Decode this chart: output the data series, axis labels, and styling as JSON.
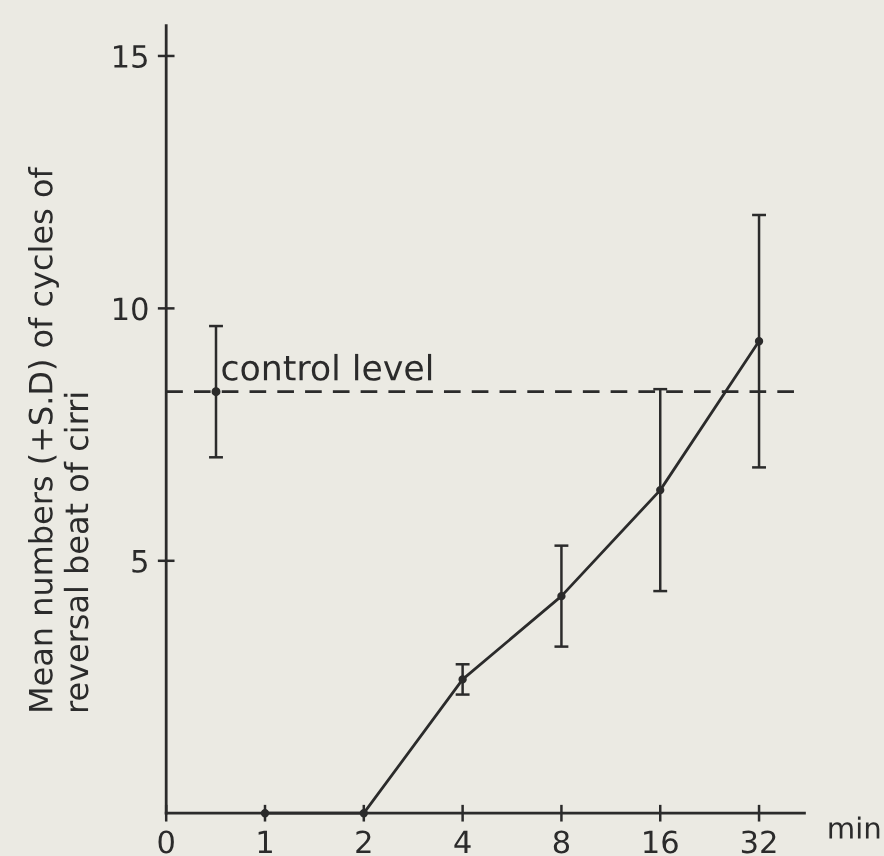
{
  "chart_data": {
    "type": "line",
    "ylabel": "Mean numbers (+S.D) of cycles of\nreversal beat of cirri",
    "xlabel": "min",
    "log": "x",
    "xlim": [
      0,
      44
    ],
    "xticks": [
      0,
      1,
      2,
      4,
      8,
      16,
      32
    ],
    "ylim": [
      0,
      15.6
    ],
    "yticks": [
      5,
      10,
      15
    ],
    "series": [
      {
        "color": "#2b2b2b",
        "x": [
          1,
          2,
          4,
          8,
          16,
          32
        ],
        "values": [
          0,
          0,
          2.65,
          4.3,
          6.4,
          9.35
        ],
        "errors": [
          null,
          null,
          0.3,
          1.0,
          2.0,
          2.5
        ],
        "marker": "circle"
      },
      {
        "type": "scatter",
        "color": "#2b2b2b",
        "x": [
          0.71
        ],
        "values": [
          8.35
        ],
        "errors": [
          1.3
        ],
        "marker": "circle"
      }
    ],
    "ref_lines": [
      {
        "axis": "y",
        "value": 8.35,
        "label": "control level",
        "line_style": "dashed",
        "color": "#2b2b2b"
      }
    ]
  }
}
